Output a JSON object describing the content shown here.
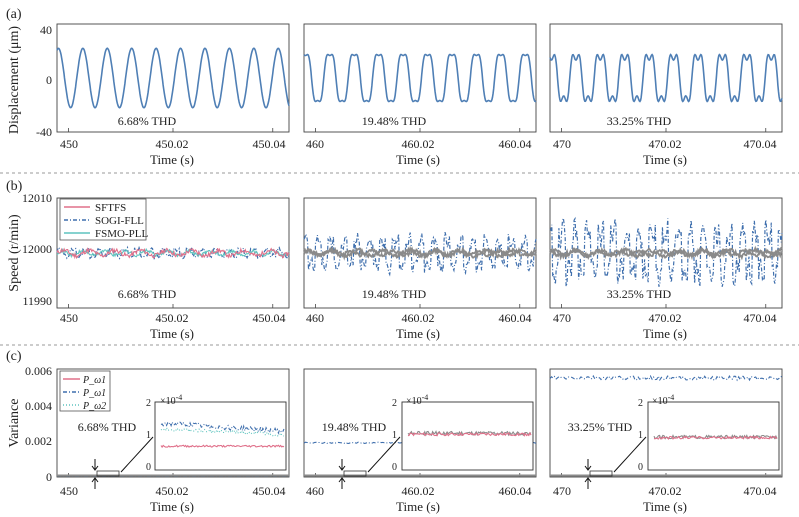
{
  "figure": {
    "rows": [
      {
        "label": "(a)",
        "ylabel": "Displacement (μm)",
        "yticks": [
          "40",
          "0",
          "-40"
        ],
        "xlabel": "Time (s)",
        "panels": [
          {
            "thd": "6.68% THD",
            "xticks": [
              "450",
              "450.02",
              "450.04"
            ]
          },
          {
            "thd": "19.48% THD",
            "xticks": [
              "460",
              "460.02",
              "460.04"
            ]
          },
          {
            "thd": "33.25% THD",
            "xticks": [
              "470",
              "470.02",
              "470.04"
            ]
          }
        ]
      },
      {
        "label": "(b)",
        "ylabel": "Speed (r/min)",
        "yticks": [
          "12010",
          "12000",
          "11990"
        ],
        "xlabel": "Time (s)",
        "legend": [
          "SFTFS",
          "SOGI-FLL",
          "FSMO-PLL"
        ],
        "panels": [
          {
            "thd": "6.68% THD",
            "xticks": [
              "450",
              "450.02",
              "450.04"
            ]
          },
          {
            "thd": "19.48% THD",
            "xticks": [
              "460",
              "460.02",
              "460.04"
            ]
          },
          {
            "thd": "33.25% THD",
            "xticks": [
              "470",
              "470.02",
              "470.04"
            ]
          }
        ]
      },
      {
        "label": "(c)",
        "ylabel": "Variance",
        "yticks": [
          "0.006",
          "0.004",
          "0.002",
          "0"
        ],
        "xlabel": "Time (s)",
        "legend": [
          "P_ω1",
          "P_ω1",
          "P_ω2"
        ],
        "inset_exponent": "×10",
        "inset_exponent_power": "-4",
        "inset_yticks": [
          "2",
          "1",
          "0"
        ],
        "panels": [
          {
            "thd": "6.68% THD",
            "xticks": [
              "450",
              "450.02",
              "450.04"
            ]
          },
          {
            "thd": "19.48% THD",
            "xticks": [
              "460",
              "460.02",
              "460.04"
            ]
          },
          {
            "thd": "33.25% THD",
            "xticks": [
              "470",
              "470.02",
              "470.04"
            ]
          }
        ]
      }
    ]
  },
  "colors": {
    "sftfs": "#e0708a",
    "sogi": "#3f6fad",
    "fsmo": "#5fc4bf",
    "displacement": "#4f7fb5",
    "axis": "#444444",
    "separator": "#999999",
    "gray": "#8a8a8a"
  },
  "chart_data": [
    {
      "type": "line",
      "panel": "(a)",
      "ylabel": "Displacement (μm)",
      "xlabel": "Time (s)",
      "ylim": [
        -40,
        40
      ],
      "series": [
        {
          "thd": "6.68% THD",
          "xlim": [
            449.998,
            450.044
          ],
          "amplitude": 22,
          "cycles": 9.5,
          "harmonic": 0.0
        },
        {
          "thd": "19.48% THD",
          "xlim": [
            459.998,
            460.044
          ],
          "amplitude": 22,
          "cycles": 9.5,
          "harmonic": 0.19
        },
        {
          "thd": "33.25% THD",
          "xlim": [
            469.998,
            470.044
          ],
          "amplitude": 22,
          "cycles": 9.5,
          "harmonic": 0.33
        }
      ]
    },
    {
      "type": "line",
      "panel": "(b)",
      "ylabel": "Speed (r/min)",
      "xlabel": "Time (s)",
      "ylim": [
        11990,
        12010
      ],
      "series": [
        {
          "thd": "6.68% THD",
          "names": [
            "SFTFS",
            "SOGI-FLL",
            "FSMO-PLL"
          ],
          "mean": 12000,
          "sogi_ripple": 0.8
        },
        {
          "thd": "19.48% THD",
          "names": [
            "SFTFS",
            "SOGI-FLL",
            "FSMO-PLL"
          ],
          "mean": 12000,
          "sogi_ripple": 3.0
        },
        {
          "thd": "33.25% THD",
          "names": [
            "SFTFS",
            "SOGI-FLL",
            "FSMO-PLL"
          ],
          "mean": 12000,
          "sogi_ripple": 5.0
        }
      ]
    },
    {
      "type": "line",
      "panel": "(c)",
      "ylabel": "Variance",
      "xlabel": "Time (s)",
      "ylim": [
        0,
        0.006
      ],
      "series": [
        {
          "thd": "6.68% THD",
          "main_level": 5e-05,
          "inset": {
            "ylim": [
              0,
              0.0002
            ],
            "sftfs": 7e-05,
            "sogi": 0.00012,
            "fsmo": 0.00011
          }
        },
        {
          "thd": "19.48% THD",
          "main_level": 0.0019,
          "inset": {
            "ylim": [
              0,
              0.0002
            ],
            "sftfs": 0.000105,
            "sogi": 0.000108,
            "fsmo": 0.000106
          }
        },
        {
          "thd": "33.25% THD",
          "main_level": 0.0055,
          "inset": {
            "ylim": [
              0,
              0.0002
            ],
            "sftfs": 9.5e-05,
            "sogi": 9.7e-05,
            "fsmo": 9.6e-05
          }
        }
      ]
    }
  ]
}
